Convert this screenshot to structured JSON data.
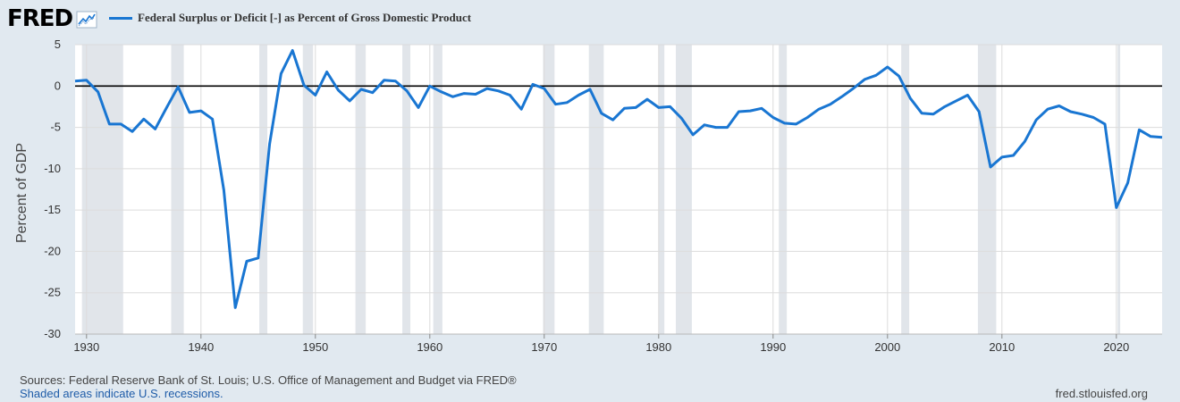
{
  "header": {
    "logo": "FRED",
    "logo_icon": "line-chart-icon"
  },
  "colors": {
    "background": "#e1e9f0",
    "plot_background": "#ffffff",
    "series": "#1976d2",
    "recession": "#e1e5ea",
    "grid": "#e6e6e6",
    "zero_line": "#000000",
    "link": "#1e5ca8"
  },
  "footer": {
    "sources": "Sources: Federal Reserve Bank of St. Louis; U.S. Office of Management and Budget via FRED®",
    "recessions_note": "Shaded areas indicate U.S. recessions.",
    "url": "fred.stlouisfed.org"
  },
  "chart_data": {
    "type": "line",
    "title": "",
    "xlabel": "",
    "ylabel": "Percent of GDP",
    "xlim": [
      1929,
      2024
    ],
    "ylim": [
      -30,
      5
    ],
    "grid": true,
    "legend": "top-left",
    "x_ticks": [
      1930,
      1940,
      1950,
      1960,
      1970,
      1980,
      1990,
      2000,
      2010,
      2020
    ],
    "x_tick_labels": [
      "1930",
      "1940",
      "1950",
      "1960",
      "1970",
      "1980",
      "1990",
      "2000",
      "2010",
      "2020"
    ],
    "y_ticks": [
      5,
      0,
      -5,
      -10,
      -15,
      -20,
      -25,
      -30
    ],
    "y_tick_labels": [
      "5",
      "0",
      "-5",
      "-10",
      "-15",
      "-20",
      "-25",
      "-30"
    ],
    "recessions": [
      [
        1929.6,
        1933.2
      ],
      [
        1937.4,
        1938.5
      ],
      [
        1945.1,
        1945.8
      ],
      [
        1948.9,
        1949.8
      ],
      [
        1953.5,
        1954.4
      ],
      [
        1957.6,
        1958.3
      ],
      [
        1960.3,
        1961.1
      ],
      [
        1969.9,
        1970.9
      ],
      [
        1973.9,
        1975.2
      ],
      [
        1980.0,
        1980.5
      ],
      [
        1981.5,
        1982.9
      ],
      [
        1990.5,
        1991.2
      ],
      [
        2001.2,
        2001.9
      ],
      [
        2007.9,
        2009.5
      ],
      [
        2020.1,
        2020.3
      ]
    ],
    "series": [
      {
        "name": "Federal Surplus or Deficit [-] as Percent of Gross Domestic Product",
        "x": [
          1929,
          1930,
          1931,
          1932,
          1933,
          1934,
          1935,
          1936,
          1937,
          1938,
          1939,
          1940,
          1941,
          1942,
          1943,
          1944,
          1945,
          1946,
          1947,
          1948,
          1949,
          1950,
          1951,
          1952,
          1953,
          1954,
          1955,
          1956,
          1957,
          1958,
          1959,
          1960,
          1961,
          1962,
          1963,
          1964,
          1965,
          1966,
          1967,
          1968,
          1969,
          1970,
          1971,
          1972,
          1973,
          1974,
          1975,
          1976,
          1977,
          1978,
          1979,
          1980,
          1981,
          1982,
          1983,
          1984,
          1985,
          1986,
          1987,
          1988,
          1989,
          1990,
          1991,
          1992,
          1993,
          1994,
          1995,
          1996,
          1997,
          1998,
          1999,
          2000,
          2001,
          2002,
          2003,
          2004,
          2005,
          2006,
          2007,
          2008,
          2009,
          2010,
          2011,
          2012,
          2013,
          2014,
          2015,
          2016,
          2017,
          2018,
          2019,
          2020,
          2021,
          2022,
          2023,
          2024
        ],
        "values": [
          0.6,
          0.7,
          -0.7,
          -4.6,
          -4.6,
          -5.5,
          -4,
          -5.2,
          -2.6,
          -0.1,
          -3.2,
          -3,
          -4,
          -12.6,
          -26.8,
          -21.2,
          -20.8,
          -7.0,
          1.5,
          4.3,
          0.1,
          -1.1,
          1.7,
          -0.5,
          -1.8,
          -0.4,
          -0.8,
          0.7,
          0.6,
          -0.6,
          -2.6,
          0.0,
          -0.7,
          -1.3,
          -0.9,
          -1.0,
          -0.3,
          -0.6,
          -1.1,
          -2.8,
          0.2,
          -0.3,
          -2.2,
          -2.0,
          -1.1,
          -0.4,
          -3.3,
          -4.1,
          -2.7,
          -2.6,
          -1.6,
          -2.6,
          -2.5,
          -3.9,
          -5.9,
          -4.7,
          -5.0,
          -5.0,
          -3.1,
          -3.0,
          -2.7,
          -3.8,
          -4.5,
          -4.6,
          -3.8,
          -2.8,
          -2.2,
          -1.3,
          -0.3,
          0.8,
          1.3,
          2.3,
          1.2,
          -1.5,
          -3.3,
          -3.4,
          -2.5,
          -1.8,
          -1.1,
          -3.1,
          -9.8,
          -8.6,
          -8.4,
          -6.7,
          -4.1,
          -2.8,
          -2.4,
          -3.1,
          -3.4,
          -3.8,
          -4.6,
          -14.7,
          -11.7,
          -5.3,
          -6.1,
          -6.2
        ]
      }
    ]
  }
}
